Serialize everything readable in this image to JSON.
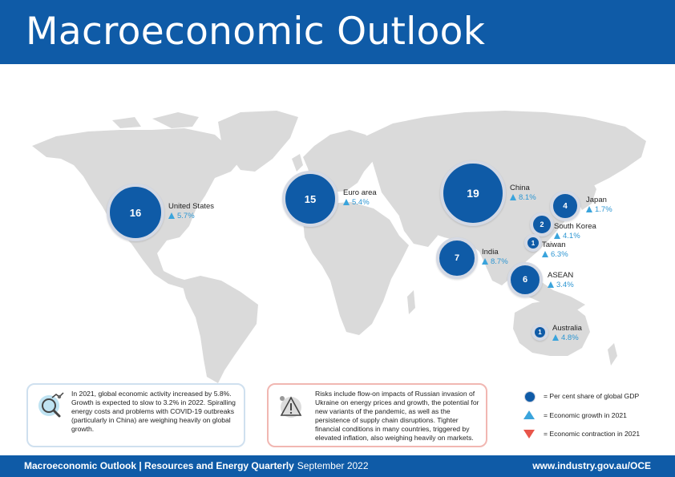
{
  "header": {
    "title": "Macroeconomic Outlook"
  },
  "colors": {
    "brand": "#0f5ba7",
    "growth": "#3aa4dc",
    "contraction": "#e8554a",
    "land": "#d9d9d9"
  },
  "regions": [
    {
      "name": "United States",
      "share": "16",
      "growth": "5.7%",
      "direction": "up"
    },
    {
      "name": "Euro area",
      "share": "15",
      "growth": "5.4%",
      "direction": "up"
    },
    {
      "name": "China",
      "share": "19",
      "growth": "8.1%",
      "direction": "up"
    },
    {
      "name": "Japan",
      "share": "4",
      "growth": "1.7%",
      "direction": "up"
    },
    {
      "name": "South Korea",
      "share": "2",
      "growth": "4.1%",
      "direction": "up"
    },
    {
      "name": "Taiwan",
      "share": "1",
      "growth": "6.3%",
      "direction": "up"
    },
    {
      "name": "India",
      "share": "7",
      "growth": "8.7%",
      "direction": "up"
    },
    {
      "name": "ASEAN",
      "share": "6",
      "growth": "3.4%",
      "direction": "up"
    },
    {
      "name": "Australia",
      "share": "1",
      "growth": "4.8%",
      "direction": "up"
    }
  ],
  "info_boxes": {
    "global": "In 2021, global economic activity increased by 5.8%. Growth is expected to slow to 3.2% in 2022. Spiralling energy costs and problems with COVID-19 outbreaks (particularly in China) are weighing heavily on global growth.",
    "risks": "Risks include flow-on impacts of Russian invasion of Ukraine on energy prices and growth, the potential for new variants of the pandemic, as well as the persistence of supply chain disruptions. Tighter financial conditions in many countries, triggered by elevated inflation, also weighing heavily on markets."
  },
  "legend": {
    "share": "= Per cent share of global GDP",
    "growth": "= Economic growth in 2021",
    "contraction": "= Economic contraction in 2021"
  },
  "footer": {
    "left": "Macroeconomic Outlook | Resources and Energy Quarterly",
    "date": "September 2022",
    "url": "www.industry.gov.au/OCE"
  }
}
